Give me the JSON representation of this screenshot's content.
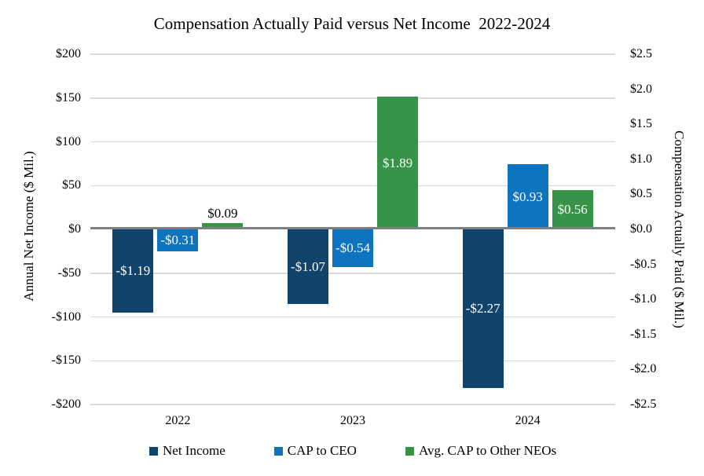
{
  "chart_data": {
    "type": "bar",
    "title": "Compensation Actually Paid versus Net Income  2022-2024",
    "categories": [
      "2022",
      "2023",
      "2024"
    ],
    "series": [
      {
        "name": "Net Income",
        "color": "#12436b",
        "values": [
          -1.19,
          -1.07,
          -2.27
        ],
        "labels": [
          "-$1.19",
          "-$1.07",
          "-$2.27"
        ]
      },
      {
        "name": "CAP to CEO",
        "color": "#0e74bf",
        "values": [
          -0.31,
          -0.54,
          0.93
        ],
        "labels": [
          "-$0.31",
          "-$0.54",
          "$0.93"
        ]
      },
      {
        "name": "Avg. CAP to Other NEOs",
        "color": "#369347",
        "values": [
          0.09,
          1.89,
          0.56
        ],
        "labels": [
          "$0.09",
          "$1.89",
          "$0.56"
        ]
      }
    ],
    "value_axis": "right",
    "left_axis": {
      "title": "Annual Net Income ($ Mil.)",
      "range": [
        -200,
        200
      ],
      "tick_labels": [
        "$200",
        "$150",
        "$100",
        "$50",
        "$0",
        "-$50",
        "-$100",
        "-$150",
        "-$200"
      ]
    },
    "right_axis": {
      "title": "Compensation Actually Paid ($ Mil.)",
      "range": [
        -2.5,
        2.5
      ],
      "tick_labels": [
        "$2.5",
        "$2.0",
        "$1.5",
        "$1.0",
        "$0.5",
        "$0.0",
        "-$0.5",
        "-$1.0",
        "-$1.5",
        "-$2.0",
        "-$2.5"
      ]
    },
    "legend_position": "bottom",
    "grid": "horizontal-on-left-ticks",
    "colors": {
      "gridline": "#d9d9d9",
      "zero_line": "#7f7f7f",
      "label_inside": "#ffffff",
      "label_outside": "#000000"
    }
  }
}
